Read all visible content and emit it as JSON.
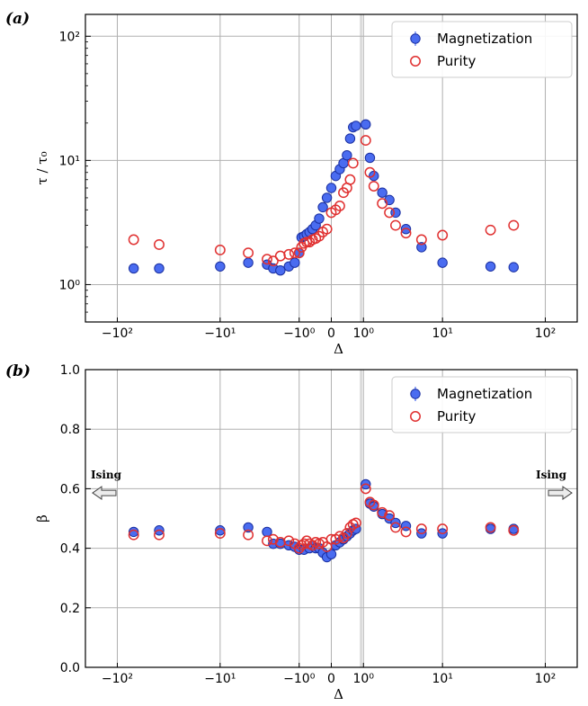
{
  "chart_data": [
    {
      "type": "scatter",
      "panel_label": "(a)",
      "xlabel": "Δ",
      "ylabel": "τ / τ₀",
      "yscale": "log",
      "ylim": [
        0.5,
        150
      ],
      "xscale": "symlog",
      "xticks": [
        "−10²",
        "−10¹",
        "−10⁰",
        "0",
        "10⁰",
        "10¹",
        "10²"
      ],
      "yticks": [
        "10⁰",
        "10¹",
        "10²"
      ],
      "grid": true,
      "critical_band": [
        0.85,
        0.95
      ],
      "legend": "top-right",
      "series": [
        {
          "name": "Magnetization",
          "color": "#4a6cf0",
          "x": [
            -70,
            -40,
            -10,
            -5,
            -3,
            -2.5,
            -2,
            -1.5,
            -1.2,
            -1,
            -0.9,
            -0.8,
            -0.7,
            -0.6,
            -0.5,
            -0.4,
            -0.3,
            -0.2,
            -0.1,
            0,
            0.1,
            0.2,
            0.3,
            0.4,
            0.5,
            0.6,
            0.7,
            1.1,
            1.3,
            1.5,
            2,
            2.5,
            3,
            4,
            6,
            10,
            30,
            50
          ],
          "y": [
            1.35,
            1.35,
            1.4,
            1.5,
            1.45,
            1.35,
            1.3,
            1.4,
            1.5,
            1.8,
            2.4,
            2.45,
            2.55,
            2.65,
            2.8,
            3.0,
            3.4,
            4.2,
            5.0,
            6.0,
            7.5,
            8.5,
            9.5,
            11.0,
            15.0,
            18.5,
            19.0,
            19.5,
            10.5,
            7.5,
            5.5,
            4.8,
            3.8,
            2.8,
            2.0,
            1.5,
            1.4,
            1.38
          ]
        },
        {
          "name": "Purity",
          "color": "#e03030",
          "x": [
            -70,
            -40,
            -10,
            -5,
            -3,
            -2.5,
            -2,
            -1.5,
            -1.2,
            -1,
            -0.9,
            -0.8,
            -0.7,
            -0.6,
            -0.5,
            -0.4,
            -0.3,
            -0.2,
            -0.1,
            0,
            0.1,
            0.2,
            0.3,
            0.4,
            0.5,
            0.6,
            1.1,
            1.3,
            1.5,
            2,
            2.5,
            3,
            4,
            6,
            10,
            30,
            50
          ],
          "y": [
            2.3,
            2.1,
            1.9,
            1.8,
            1.6,
            1.55,
            1.7,
            1.75,
            1.8,
            1.8,
            2.0,
            2.15,
            2.2,
            2.2,
            2.3,
            2.35,
            2.45,
            2.65,
            2.8,
            3.8,
            4.0,
            4.3,
            5.5,
            6.0,
            7.0,
            9.5,
            14.5,
            8.0,
            6.2,
            4.5,
            3.8,
            3.0,
            2.6,
            2.3,
            2.5,
            2.75,
            3.0
          ]
        }
      ]
    },
    {
      "type": "scatter",
      "panel_label": "(b)",
      "xlabel": "Δ",
      "ylabel": "β",
      "yscale": "linear",
      "ylim": [
        0.0,
        1.0
      ],
      "xscale": "symlog",
      "xticks": [
        "−10²",
        "−10¹",
        "−10⁰",
        "0",
        "10⁰",
        "10¹",
        "10²"
      ],
      "yticks": [
        "0.0",
        "0.2",
        "0.4",
        "0.6",
        "0.8",
        "1.0"
      ],
      "grid": true,
      "critical_band": [
        0.85,
        0.95
      ],
      "legend": "top-right",
      "annotation_left": "Ising",
      "annotation_right": "Ising",
      "series": [
        {
          "name": "Magnetization",
          "color": "#4a6cf0",
          "x": [
            -70,
            -40,
            -10,
            -5,
            -3,
            -2.5,
            -2,
            -1.5,
            -1.2,
            -1,
            -0.8,
            -0.6,
            -0.5,
            -0.4,
            -0.3,
            -0.2,
            -0.1,
            0,
            0.1,
            0.2,
            0.3,
            0.4,
            0.5,
            0.6,
            0.7,
            1.1,
            1.3,
            1.5,
            2,
            2.5,
            3,
            4,
            6,
            10,
            30,
            50
          ],
          "y": [
            0.455,
            0.46,
            0.46,
            0.47,
            0.455,
            0.415,
            0.415,
            0.41,
            0.405,
            0.395,
            0.395,
            0.4,
            0.41,
            0.4,
            0.4,
            0.385,
            0.37,
            0.38,
            0.41,
            0.42,
            0.43,
            0.44,
            0.45,
            0.46,
            0.465,
            0.615,
            0.55,
            0.54,
            0.515,
            0.5,
            0.485,
            0.475,
            0.45,
            0.45,
            0.465,
            0.465
          ]
        },
        {
          "name": "Purity",
          "color": "#e03030",
          "x": [
            -70,
            -40,
            -10,
            -5,
            -3,
            -2.5,
            -2,
            -1.5,
            -1.2,
            -1,
            -0.9,
            -0.8,
            -0.7,
            -0.6,
            -0.5,
            -0.4,
            -0.3,
            -0.2,
            -0.1,
            0,
            0.1,
            0.2,
            0.3,
            0.4,
            0.5,
            0.6,
            0.7,
            1.1,
            1.3,
            1.5,
            2,
            2.5,
            3,
            4,
            6,
            10,
            30,
            50
          ],
          "y": [
            0.445,
            0.445,
            0.45,
            0.445,
            0.425,
            0.43,
            0.42,
            0.425,
            0.415,
            0.4,
            0.41,
            0.415,
            0.425,
            0.415,
            0.41,
            0.42,
            0.415,
            0.42,
            0.405,
            0.43,
            0.43,
            0.44,
            0.435,
            0.45,
            0.47,
            0.48,
            0.485,
            0.6,
            0.555,
            0.545,
            0.52,
            0.51,
            0.47,
            0.455,
            0.465,
            0.465,
            0.47,
            0.46
          ]
        }
      ]
    }
  ]
}
